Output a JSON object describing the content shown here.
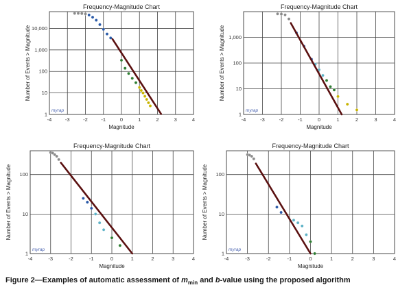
{
  "caption": {
    "prefix": "Figure 2—Examples of automatic assessment of ",
    "m": "m",
    "min": "min",
    "mid": " and ",
    "b": "b",
    "suffix": "-value using the proposed algorithm"
  },
  "watermark": "myrap",
  "chart_data": [
    {
      "type": "scatter",
      "title": "Frequency-Magnitude Chart",
      "xlabel": "Magnitude",
      "ylabel": "Number of Events > Magnitude",
      "xlim": [
        -4,
        4
      ],
      "ylim_log": [
        1,
        60000
      ],
      "xticks": [
        "-4",
        "-3",
        "-2",
        "-1",
        "0",
        "1",
        "2",
        "3",
        "4"
      ],
      "yticks": [
        {
          "v": 1,
          "t": "1"
        },
        {
          "v": 10,
          "t": "10"
        },
        {
          "v": 100,
          "t": "100"
        },
        {
          "v": 1000,
          "t": "1,000"
        },
        {
          "v": 10000,
          "t": "10,000"
        }
      ],
      "grid": true,
      "fit_line": {
        "x": [
          -0.5,
          2.2
        ],
        "y": [
          3200,
          1.05
        ]
      },
      "series": [
        {
          "color": "#8a8a8a",
          "points": [
            [
              -2.6,
              50000
            ],
            [
              -2.4,
              50000
            ],
            [
              -2.2,
              49000
            ],
            [
              -2.0,
              47000
            ]
          ]
        },
        {
          "color": "#2a5aa8",
          "points": [
            [
              -1.8,
              42000
            ],
            [
              -1.6,
              33000
            ],
            [
              -1.4,
              24000
            ],
            [
              -1.2,
              15000
            ],
            [
              -1.0,
              9000
            ],
            [
              -0.8,
              5500
            ],
            [
              -0.6,
              3600
            ]
          ]
        },
        {
          "color": "#2e7d32",
          "points": [
            [
              0.0,
              330
            ],
            [
              0.2,
              140
            ],
            [
              0.4,
              80
            ],
            [
              0.6,
              48
            ],
            [
              0.8,
              30
            ]
          ]
        },
        {
          "color": "#c8b400",
          "points": [
            [
              1.0,
              18
            ],
            [
              1.1,
              13
            ],
            [
              1.2,
              10
            ],
            [
              1.3,
              7
            ],
            [
              1.4,
              5
            ],
            [
              1.5,
              3.5
            ],
            [
              1.6,
              2.5
            ]
          ]
        }
      ]
    },
    {
      "type": "scatter",
      "title": "Frequency-Magnitude Chart",
      "xlabel": "Magnitude",
      "ylabel": "Number of Events > Magnitude",
      "xlim": [
        -4,
        4
      ],
      "ylim_log": [
        1,
        10000
      ],
      "xticks": [
        "-4",
        "-3",
        "-2",
        "-1",
        "0",
        "1",
        "2",
        "3",
        "4"
      ],
      "yticks": [
        {
          "v": 1,
          "t": "1"
        },
        {
          "v": 10,
          "t": "10"
        },
        {
          "v": 100,
          "t": "100"
        },
        {
          "v": 1000,
          "t": "1,000"
        }
      ],
      "grid": true,
      "fit_line": {
        "x": [
          -1.5,
          1.2
        ],
        "y": [
          3600,
          1.0
        ]
      },
      "series": [
        {
          "color": "#8a8a8a",
          "points": [
            [
              -2.2,
              8200
            ],
            [
              -2.0,
              8000
            ],
            [
              -1.8,
              7500
            ],
            [
              -1.6,
              5200
            ]
          ]
        },
        {
          "color": "#2a5aa8",
          "points": [
            [
              -1.2,
              1500
            ],
            [
              -0.8,
              450
            ],
            [
              -0.4,
              140
            ]
          ]
        },
        {
          "color": "#5fb3c7",
          "points": [
            [
              -0.2,
              90
            ],
            [
              0.0,
              55
            ],
            [
              0.2,
              33
            ]
          ]
        },
        {
          "color": "#2e7d32",
          "points": [
            [
              0.4,
              21
            ],
            [
              0.6,
              12
            ],
            [
              0.8,
              9
            ]
          ]
        },
        {
          "color": "#c8b400",
          "points": [
            [
              1.0,
              5
            ],
            [
              1.5,
              2.5
            ],
            [
              2.0,
              1.5
            ]
          ]
        }
      ]
    },
    {
      "type": "scatter",
      "title": "Frequency-Magnitude Chart",
      "xlabel": "Magnitude",
      "ylabel": "Number of Events > Magnitude",
      "xlim": [
        -4,
        4
      ],
      "ylim_log": [
        1,
        400
      ],
      "xticks": [
        "-4",
        "-3",
        "-2",
        "-1",
        "0",
        "1",
        "2",
        "3",
        "4"
      ],
      "yticks": [
        {
          "v": 1,
          "t": "1"
        },
        {
          "v": 10,
          "t": "10"
        },
        {
          "v": 100,
          "t": "100"
        }
      ],
      "grid": true,
      "fit_line": {
        "x": [
          -2.5,
          1.0
        ],
        "y": [
          200,
          1.0
        ]
      },
      "series": [
        {
          "color": "#8a8a8a",
          "points": [
            [
              -3.0,
              360
            ],
            [
              -2.9,
              350
            ],
            [
              -2.8,
              320
            ],
            [
              -2.7,
              290
            ],
            [
              -2.6,
              240
            ]
          ]
        },
        {
          "color": "#2a5aa8",
          "points": [
            [
              -1.4,
              25
            ],
            [
              -1.2,
              20
            ],
            [
              -1.0,
              14
            ]
          ]
        },
        {
          "color": "#5fb3c7",
          "points": [
            [
              -0.8,
              10
            ],
            [
              -0.6,
              6
            ],
            [
              -0.4,
              4
            ]
          ]
        },
        {
          "color": "#2e7d32",
          "points": [
            [
              0.0,
              2.5
            ],
            [
              0.4,
              1.6
            ]
          ]
        }
      ]
    },
    {
      "type": "scatter",
      "title": "Frequency-Magnitude Chart",
      "xlabel": "Magnitude",
      "ylabel": "Number of Events > Magnitude",
      "xlim": [
        -4,
        4
      ],
      "ylim_log": [
        1,
        400
      ],
      "xticks": [
        "-4",
        "-3",
        "-2",
        "-1",
        "0",
        "1",
        "2",
        "3",
        "4"
      ],
      "yticks": [
        {
          "v": 1,
          "t": "1"
        },
        {
          "v": 10,
          "t": "10"
        },
        {
          "v": 100,
          "t": "100"
        }
      ],
      "grid": true,
      "fit_line": {
        "x": [
          -2.6,
          0.0
        ],
        "y": [
          190,
          1.0
        ]
      },
      "series": [
        {
          "color": "#8a8a8a",
          "points": [
            [
              -3.0,
              320
            ],
            [
              -2.9,
              310
            ],
            [
              -2.8,
              290
            ],
            [
              -2.7,
              250
            ]
          ]
        },
        {
          "color": "#2a5aa8",
          "points": [
            [
              -1.6,
              15
            ],
            [
              -1.4,
              11
            ]
          ]
        },
        {
          "color": "#5fb3c7",
          "points": [
            [
              -0.8,
              7
            ],
            [
              -0.6,
              6
            ],
            [
              -0.4,
              5
            ],
            [
              -0.2,
              3
            ]
          ]
        },
        {
          "color": "#2e7d32",
          "points": [
            [
              0.0,
              2
            ],
            [
              0.2,
              1
            ]
          ]
        }
      ]
    }
  ]
}
